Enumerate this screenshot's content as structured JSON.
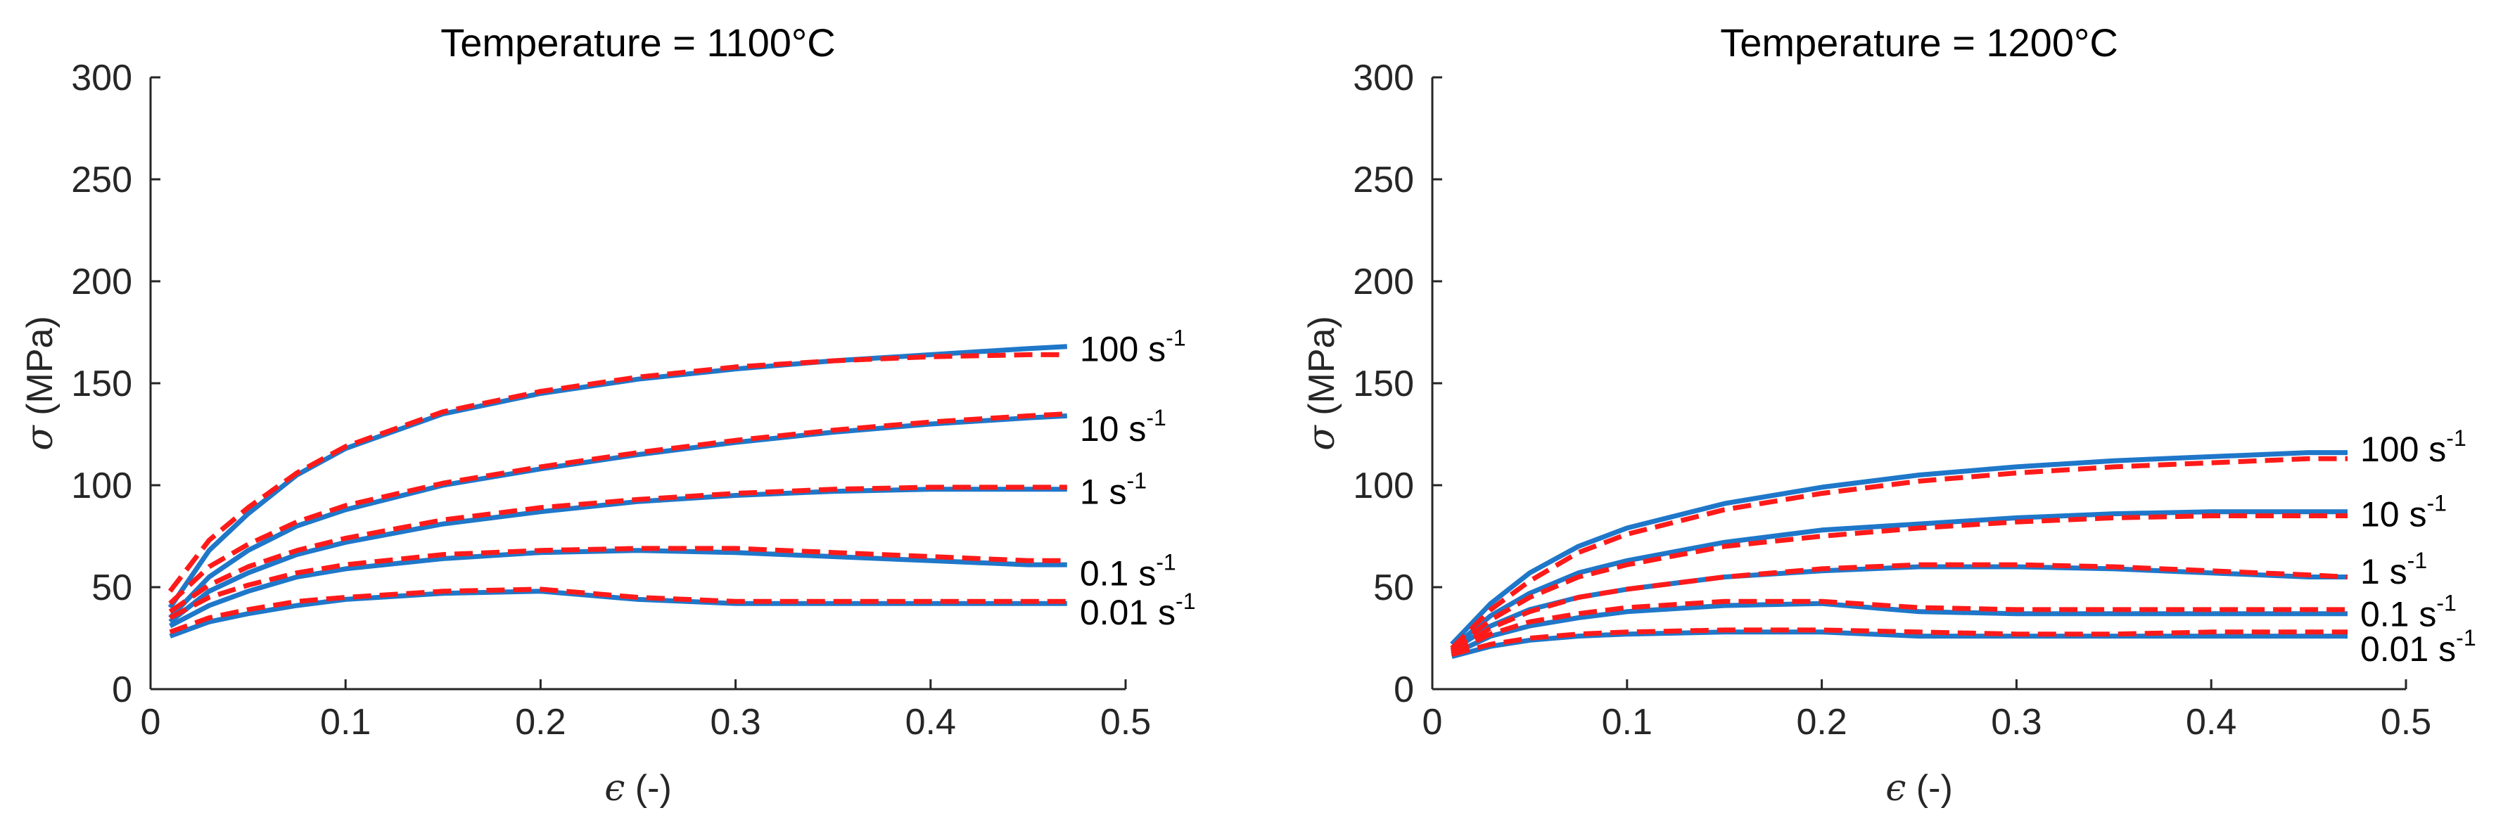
{
  "chart_data": [
    {
      "type": "line",
      "title": "Temperature = 1100°C",
      "xlabel_symbol": "ϵ",
      "xlabel_unit": " (-)",
      "ylabel_symbol": "σ",
      "ylabel_unit": " (MPa)",
      "xlim": [
        0,
        0.5
      ],
      "ylim": [
        0,
        300
      ],
      "xticks": [
        0,
        0.1,
        0.2,
        0.3,
        0.4,
        0.5
      ],
      "xtick_labels": [
        "0",
        "0.1",
        "0.2",
        "0.3",
        "0.4",
        "0.5"
      ],
      "yticks": [
        0,
        50,
        100,
        150,
        200,
        250,
        300
      ],
      "ytick_labels": [
        "0",
        "50",
        "100",
        "150",
        "200",
        "250",
        "300"
      ],
      "x": [
        0.01,
        0.03,
        0.05,
        0.075,
        0.1,
        0.15,
        0.2,
        0.25,
        0.3,
        0.35,
        0.4,
        0.45,
        0.47
      ],
      "series": [
        {
          "name": "100 s-1 measured",
          "style": "solid",
          "color": "#1f77c9",
          "values": [
            40,
            68,
            86,
            105,
            118,
            135,
            145,
            152,
            157,
            161,
            164,
            167,
            168
          ]
        },
        {
          "name": "100 s-1 model",
          "style": "dashed",
          "color": "#ff1a1a",
          "values": [
            48,
            73,
            89,
            106,
            119,
            136,
            146,
            153,
            158,
            161,
            163,
            164,
            164
          ]
        },
        {
          "name": "10 s-1 measured",
          "style": "solid",
          "color": "#1f77c9",
          "values": [
            35,
            55,
            68,
            80,
            88,
            100,
            108,
            115,
            121,
            126,
            130,
            133,
            134
          ]
        },
        {
          "name": "10 s-1 model",
          "style": "dashed",
          "color": "#ff1a1a",
          "values": [
            42,
            60,
            71,
            82,
            90,
            101,
            109,
            116,
            122,
            127,
            131,
            134,
            135
          ]
        },
        {
          "name": "1 s-1 measured",
          "style": "solid",
          "color": "#1f77c9",
          "values": [
            33,
            48,
            57,
            66,
            72,
            81,
            87,
            92,
            95,
            97,
            98,
            98,
            98
          ]
        },
        {
          "name": "1 s-1 model",
          "style": "dashed",
          "color": "#ff1a1a",
          "values": [
            38,
            51,
            60,
            68,
            74,
            83,
            89,
            93,
            96,
            98,
            99,
            99,
            99
          ]
        },
        {
          "name": "0.1 s-1 measured",
          "style": "solid",
          "color": "#1f77c9",
          "values": [
            31,
            41,
            48,
            55,
            59,
            64,
            67,
            68,
            67,
            65,
            63,
            61,
            61
          ]
        },
        {
          "name": "0.1 s-1 model",
          "style": "dashed",
          "color": "#ff1a1a",
          "values": [
            35,
            45,
            51,
            57,
            61,
            66,
            68,
            69,
            69,
            67,
            65,
            63,
            63
          ]
        },
        {
          "name": "0.01 s-1 measured",
          "style": "solid",
          "color": "#1f77c9",
          "values": [
            26,
            33,
            37,
            41,
            44,
            47,
            48,
            44,
            42,
            42,
            42,
            42,
            42
          ]
        },
        {
          "name": "0.01 s-1 model",
          "style": "dashed",
          "color": "#ff1a1a",
          "values": [
            28,
            35,
            39,
            43,
            45,
            48,
            49,
            45,
            43,
            43,
            43,
            43,
            43
          ]
        }
      ],
      "curve_labels": [
        {
          "text": "100 s",
          "sup": "-1",
          "value": 167
        },
        {
          "text": "10 s",
          "sup": "-1",
          "value": 128
        },
        {
          "text": "1 s",
          "sup": "-1",
          "value": 97
        },
        {
          "text": "0.1 s",
          "sup": "-1",
          "value": 57
        },
        {
          "text": "0.01 s",
          "sup": "-1",
          "value": 38
        }
      ]
    },
    {
      "type": "line",
      "title": "Temperature = 1200°C",
      "xlabel_symbol": "ϵ",
      "xlabel_unit": " (-)",
      "ylabel_symbol": "σ",
      "ylabel_unit": " (MPa)",
      "xlim": [
        0,
        0.5
      ],
      "ylim": [
        0,
        300
      ],
      "xticks": [
        0,
        0.1,
        0.2,
        0.3,
        0.4,
        0.5
      ],
      "xtick_labels": [
        "0",
        "0.1",
        "0.2",
        "0.3",
        "0.4",
        "0.5"
      ],
      "yticks": [
        0,
        50,
        100,
        150,
        200,
        250,
        300
      ],
      "ytick_labels": [
        "0",
        "50",
        "100",
        "150",
        "200",
        "250",
        "300"
      ],
      "x": [
        0.01,
        0.03,
        0.05,
        0.075,
        0.1,
        0.15,
        0.2,
        0.25,
        0.3,
        0.35,
        0.4,
        0.45,
        0.47
      ],
      "series": [
        {
          "name": "100 s-1 measured",
          "style": "solid",
          "color": "#1f77c9",
          "values": [
            22,
            42,
            57,
            70,
            79,
            91,
            99,
            105,
            109,
            112,
            114,
            116,
            116
          ]
        },
        {
          "name": "100 s-1 model",
          "style": "dashed",
          "color": "#ff1a1a",
          "values": [
            20,
            39,
            53,
            67,
            76,
            88,
            96,
            102,
            106,
            109,
            111,
            113,
            113
          ]
        },
        {
          "name": "10 s-1 measured",
          "style": "solid",
          "color": "#1f77c9",
          "values": [
            20,
            36,
            47,
            57,
            63,
            72,
            78,
            81,
            84,
            86,
            87,
            87,
            87
          ]
        },
        {
          "name": "10 s-1 model",
          "style": "dashed",
          "color": "#ff1a1a",
          "values": [
            19,
            34,
            45,
            55,
            61,
            70,
            75,
            79,
            82,
            84,
            85,
            85,
            85
          ]
        },
        {
          "name": "1 s-1 measured",
          "style": "solid",
          "color": "#1f77c9",
          "values": [
            19,
            31,
            39,
            45,
            49,
            55,
            58,
            60,
            60,
            59,
            57,
            55,
            55
          ]
        },
        {
          "name": "1 s-1 model",
          "style": "dashed",
          "color": "#ff1a1a",
          "values": [
            18,
            30,
            38,
            45,
            49,
            55,
            59,
            61,
            61,
            60,
            58,
            56,
            55
          ]
        },
        {
          "name": "0.1 s-1 measured",
          "style": "solid",
          "color": "#1f77c9",
          "values": [
            17,
            26,
            31,
            35,
            38,
            41,
            42,
            38,
            37,
            37,
            37,
            37,
            37
          ]
        },
        {
          "name": "0.1 s-1 model",
          "style": "dashed",
          "color": "#ff1a1a",
          "values": [
            18,
            27,
            33,
            37,
            40,
            43,
            43,
            40,
            39,
            39,
            39,
            39,
            39
          ]
        },
        {
          "name": "0.01 s-1 measured",
          "style": "solid",
          "color": "#1f77c9",
          "values": [
            16,
            21,
            24,
            26,
            27,
            28,
            28,
            26,
            26,
            26,
            26,
            26,
            26
          ]
        },
        {
          "name": "0.01 s-1 model",
          "style": "dashed",
          "color": "#ff1a1a",
          "values": [
            17,
            22,
            25,
            27,
            28,
            29,
            29,
            28,
            27,
            27,
            28,
            28,
            28
          ]
        }
      ],
      "curve_labels": [
        {
          "text": "100 s",
          "sup": "-1",
          "value": 118
        },
        {
          "text": "10 s",
          "sup": "-1",
          "value": 86
        },
        {
          "text": "1 s",
          "sup": "-1",
          "value": 58
        },
        {
          "text": "0.1 s",
          "sup": "-1",
          "value": 37
        },
        {
          "text": "0.01 s",
          "sup": "-1",
          "value": 20
        }
      ]
    }
  ]
}
